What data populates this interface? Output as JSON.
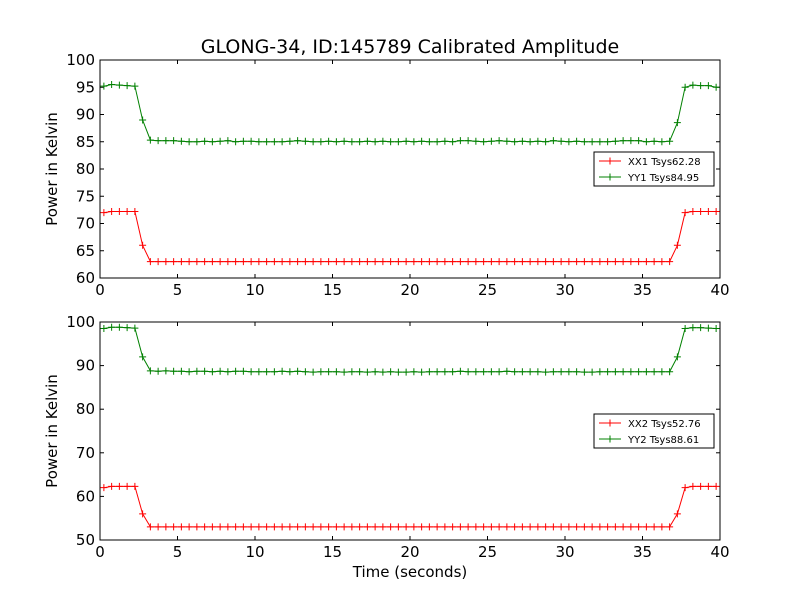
{
  "figure": {
    "title": "GLONG-34, ID:145789 Calibrated Amplitude"
  },
  "colors": {
    "series_red": "#ff0000",
    "series_green": "#008000",
    "axes": "#000000",
    "background": "#ffffff"
  },
  "chart_data": [
    {
      "type": "line",
      "title": "GLONG-34, ID:145789 Calibrated Amplitude",
      "xlabel": "",
      "ylabel": "Power in Kelvin",
      "xlim": [
        0,
        40
      ],
      "ylim": [
        60,
        100
      ],
      "xticks": [
        0,
        5,
        10,
        15,
        20,
        25,
        30,
        35,
        40
      ],
      "yticks": [
        60,
        65,
        70,
        75,
        80,
        85,
        90,
        95,
        100
      ],
      "legend_position": "center-right",
      "x_start": 0.25,
      "x_step": 0.5,
      "series": [
        {
          "name": "XX1 Tsys62.28",
          "color": "#ff0000",
          "marker": "+",
          "values": [
            72.0,
            72.2,
            72.2,
            72.2,
            72.2,
            66.0,
            63.0,
            63.0,
            63.0,
            63.0,
            63.0,
            63.0,
            63.0,
            63.0,
            63.0,
            63.0,
            63.0,
            63.0,
            63.0,
            63.0,
            63.0,
            63.0,
            63.0,
            63.0,
            63.0,
            63.0,
            63.0,
            63.0,
            63.0,
            63.0,
            63.0,
            63.0,
            63.0,
            63.0,
            63.0,
            63.0,
            63.0,
            63.0,
            63.0,
            63.0,
            63.0,
            63.0,
            63.0,
            63.0,
            63.0,
            63.0,
            63.0,
            63.0,
            63.0,
            63.0,
            63.0,
            63.0,
            63.0,
            63.0,
            63.0,
            63.0,
            63.0,
            63.0,
            63.0,
            63.0,
            63.0,
            63.0,
            63.0,
            63.0,
            63.0,
            63.0,
            63.0,
            63.0,
            63.0,
            63.0,
            63.0,
            63.0,
            63.0,
            63.0,
            66.0,
            72.0,
            72.2,
            72.2,
            72.2,
            72.2
          ]
        },
        {
          "name": "YY1 Tsys84.95",
          "color": "#008000",
          "marker": "+",
          "values": [
            95.2,
            95.5,
            95.4,
            95.3,
            95.2,
            89.0,
            85.3,
            85.2,
            85.2,
            85.2,
            85.1,
            85.0,
            85.0,
            85.1,
            85.0,
            85.1,
            85.2,
            85.0,
            85.1,
            85.1,
            85.0,
            85.0,
            85.0,
            85.0,
            85.1,
            85.2,
            85.1,
            85.0,
            85.0,
            85.1,
            85.0,
            85.1,
            85.0,
            85.0,
            85.1,
            85.0,
            85.1,
            85.0,
            85.0,
            85.1,
            85.0,
            85.1,
            85.0,
            85.0,
            85.1,
            85.0,
            85.2,
            85.2,
            85.1,
            85.0,
            85.1,
            85.2,
            85.1,
            85.0,
            85.1,
            85.0,
            85.1,
            85.0,
            85.2,
            85.1,
            85.0,
            85.1,
            85.0,
            85.0,
            85.0,
            85.0,
            85.1,
            85.2,
            85.2,
            85.2,
            85.0,
            85.1,
            85.0,
            85.1,
            88.5,
            95.0,
            95.4,
            95.3,
            95.3,
            95.0
          ]
        }
      ]
    },
    {
      "type": "line",
      "title": "",
      "xlabel": "Time (seconds)",
      "ylabel": "Power in Kelvin",
      "xlim": [
        0,
        40
      ],
      "ylim": [
        50,
        100
      ],
      "xticks": [
        0,
        5,
        10,
        15,
        20,
        25,
        30,
        35,
        40
      ],
      "yticks": [
        50,
        60,
        70,
        80,
        90,
        100
      ],
      "legend_position": "center-right",
      "x_start": 0.25,
      "x_step": 0.5,
      "series": [
        {
          "name": "XX2 Tsys52.76",
          "color": "#ff0000",
          "marker": "+",
          "values": [
            62.0,
            62.3,
            62.3,
            62.3,
            62.3,
            56.0,
            53.0,
            53.0,
            53.0,
            53.0,
            53.0,
            53.0,
            53.0,
            53.0,
            53.0,
            53.0,
            53.0,
            53.0,
            53.0,
            53.0,
            53.0,
            53.0,
            53.0,
            53.0,
            53.0,
            53.0,
            53.0,
            53.0,
            53.0,
            53.0,
            53.0,
            53.0,
            53.0,
            53.0,
            53.0,
            53.0,
            53.0,
            53.0,
            53.0,
            53.0,
            53.0,
            53.0,
            53.0,
            53.0,
            53.0,
            53.0,
            53.0,
            53.0,
            53.0,
            53.0,
            53.0,
            53.0,
            53.0,
            53.0,
            53.0,
            53.0,
            53.0,
            53.0,
            53.0,
            53.0,
            53.0,
            53.0,
            53.0,
            53.0,
            53.0,
            53.0,
            53.0,
            53.0,
            53.0,
            53.0,
            53.0,
            53.0,
            53.0,
            53.0,
            56.0,
            62.0,
            62.3,
            62.3,
            62.3,
            62.3
          ]
        },
        {
          "name": "YY2 Tsys88.61",
          "color": "#008000",
          "marker": "+",
          "values": [
            98.5,
            98.8,
            98.8,
            98.7,
            98.6,
            92.0,
            88.8,
            88.7,
            88.8,
            88.7,
            88.7,
            88.6,
            88.7,
            88.7,
            88.6,
            88.7,
            88.6,
            88.7,
            88.7,
            88.6,
            88.6,
            88.6,
            88.6,
            88.7,
            88.6,
            88.7,
            88.6,
            88.5,
            88.6,
            88.6,
            88.6,
            88.5,
            88.6,
            88.6,
            88.5,
            88.6,
            88.5,
            88.6,
            88.5,
            88.5,
            88.6,
            88.5,
            88.6,
            88.6,
            88.6,
            88.6,
            88.7,
            88.6,
            88.6,
            88.6,
            88.6,
            88.6,
            88.7,
            88.6,
            88.6,
            88.6,
            88.6,
            88.5,
            88.6,
            88.6,
            88.6,
            88.6,
            88.5,
            88.5,
            88.6,
            88.6,
            88.6,
            88.6,
            88.6,
            88.6,
            88.6,
            88.6,
            88.6,
            88.6,
            92.0,
            98.5,
            98.7,
            98.7,
            98.6,
            98.5
          ]
        }
      ]
    }
  ]
}
